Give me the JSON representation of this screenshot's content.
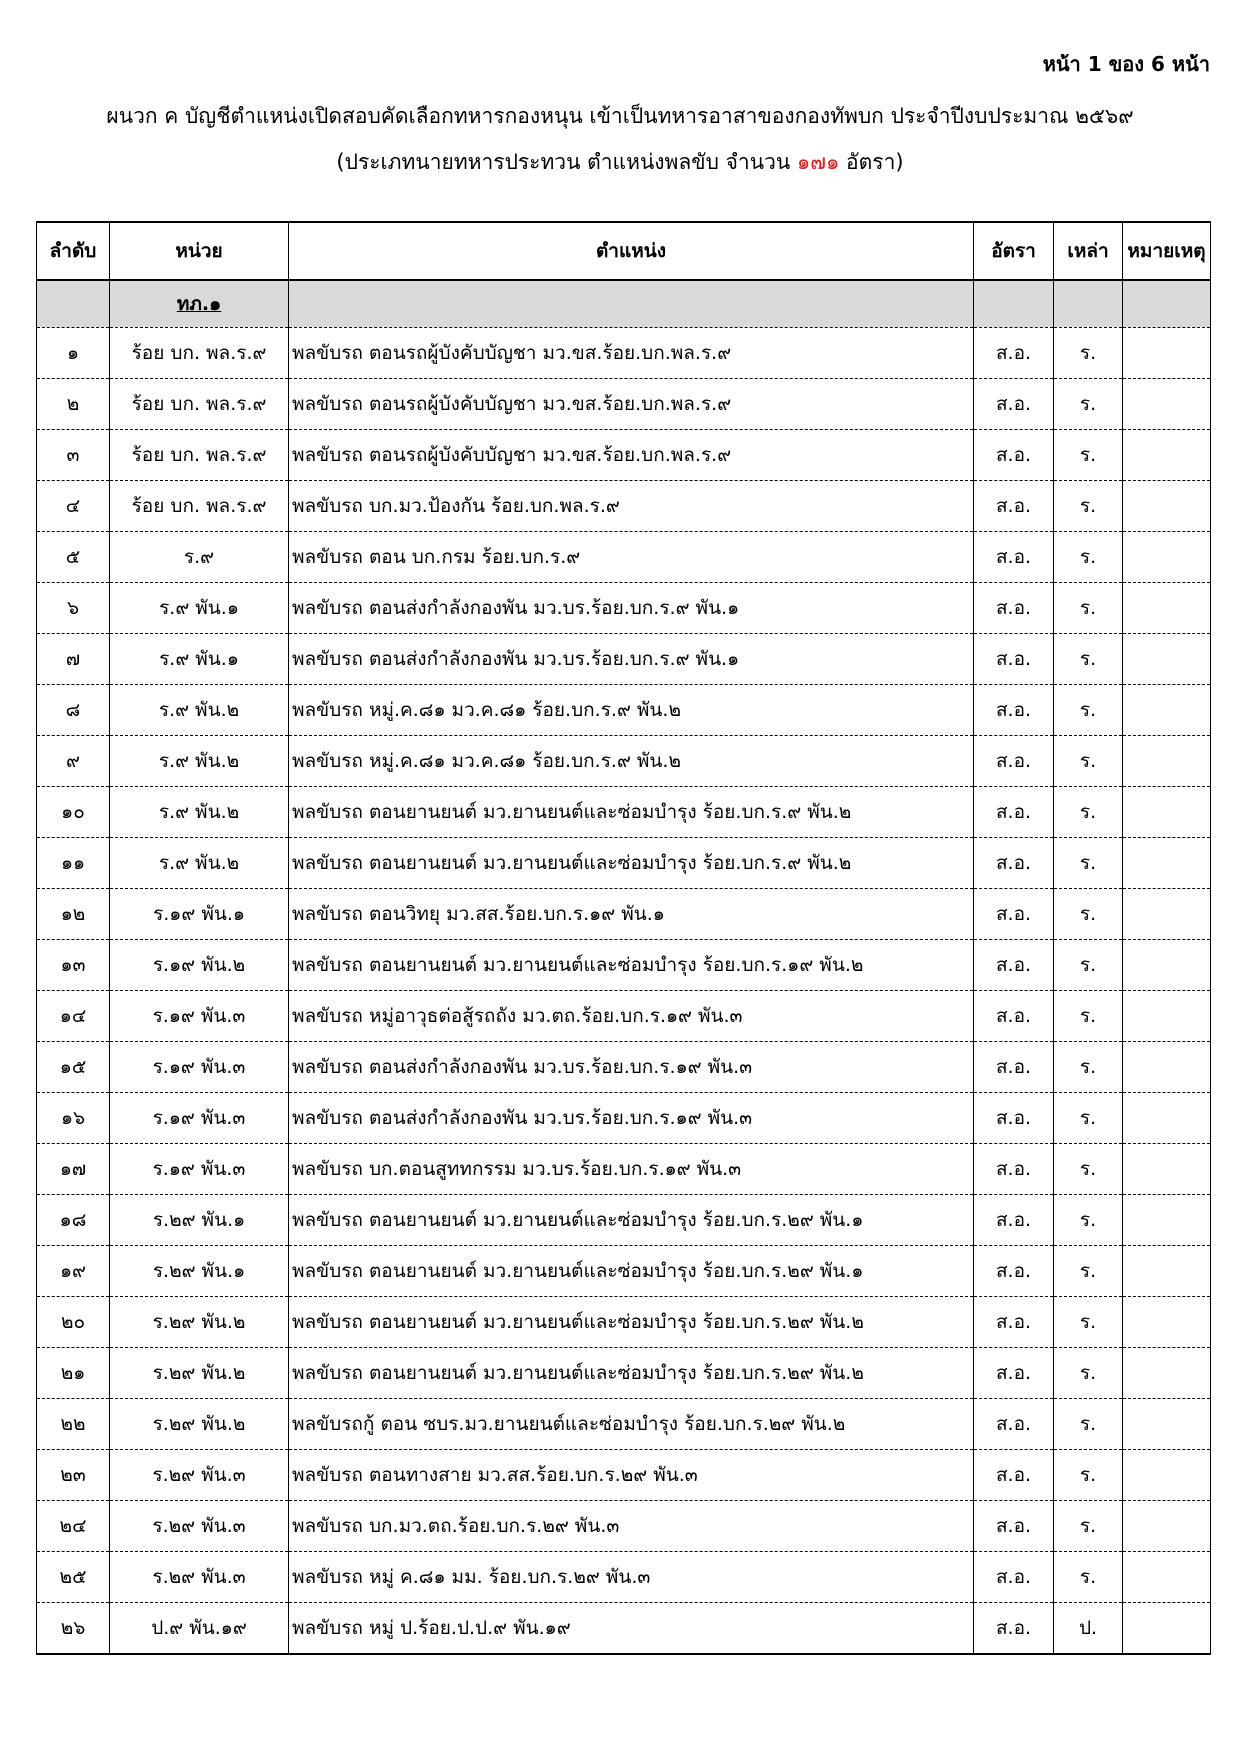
{
  "page_number": "หน้า 1 ของ 6 หน้า",
  "title": "ผนวก ค บัญชีตำแหน่งเปิดสอบคัดเลือกทหารกองหนุน เข้าเป็นทหารอาสาของกองทัพบก ประจำปีงบประมาณ ๒๕๖๙",
  "subtitle": {
    "before": "(ประเภทนายทหารประทวน ตำแหน่งพลขับ จำนวน ",
    "count": "๑๗๑",
    "after": " อัตรา)"
  },
  "table": {
    "headers": [
      "ลำดับ",
      "หน่วย",
      "ตำแหน่ง",
      "อัตรา",
      "เหล่า",
      "หมายเหตุ"
    ],
    "group": "ทภ.๑",
    "rows": [
      [
        "๑",
        "ร้อย บก. พล.ร.๙",
        "พลขับรถ ตอนรถผู้บังคับบัญชา มว.ขส.ร้อย.บก.พล.ร.๙",
        "ส.อ.",
        "ร."
      ],
      [
        "๒",
        "ร้อย บก. พล.ร.๙",
        "พลขับรถ ตอนรถผู้บังคับบัญชา มว.ขส.ร้อย.บก.พล.ร.๙",
        "ส.อ.",
        "ร."
      ],
      [
        "๓",
        "ร้อย บก. พล.ร.๙",
        "พลขับรถ ตอนรถผู้บังคับบัญชา มว.ขส.ร้อย.บก.พล.ร.๙",
        "ส.อ.",
        "ร."
      ],
      [
        "๔",
        "ร้อย บก. พล.ร.๙",
        "พลขับรถ บก.มว.ป้องกัน ร้อย.บก.พล.ร.๙",
        "ส.อ.",
        "ร."
      ],
      [
        "๕",
        "ร.๙",
        "พลขับรถ ตอน บก.กรม ร้อย.บก.ร.๙",
        "ส.อ.",
        "ร."
      ],
      [
        "๖",
        "ร.๙ พัน.๑",
        "พลขับรถ ตอนส่งกำลังกองพัน มว.บร.ร้อย.บก.ร.๙ พัน.๑",
        "ส.อ.",
        "ร."
      ],
      [
        "๗",
        "ร.๙ พัน.๑",
        "พลขับรถ ตอนส่งกำลังกองพัน มว.บร.ร้อย.บก.ร.๙ พัน.๑",
        "ส.อ.",
        "ร."
      ],
      [
        "๘",
        "ร.๙ พัน.๒",
        "พลขับรถ หมู่.ค.๘๑ มว.ค.๘๑ ร้อย.บก.ร.๙ พัน.๒",
        "ส.อ.",
        "ร."
      ],
      [
        "๙",
        "ร.๙ พัน.๒",
        "พลขับรถ หมู่.ค.๘๑ มว.ค.๘๑ ร้อย.บก.ร.๙ พัน.๒",
        "ส.อ.",
        "ร."
      ],
      [
        "๑๐",
        "ร.๙ พัน.๒",
        "พลขับรถ ตอนยานยนต์ มว.ยานยนต์และซ่อมบำรุง ร้อย.บก.ร.๙ พัน.๒",
        "ส.อ.",
        "ร."
      ],
      [
        "๑๑",
        "ร.๙ พัน.๒",
        "พลขับรถ ตอนยานยนต์ มว.ยานยนต์และซ่อมบำรุง ร้อย.บก.ร.๙ พัน.๒",
        "ส.อ.",
        "ร."
      ],
      [
        "๑๒",
        "ร.๑๙ พัน.๑",
        "พลขับรถ ตอนวิทยุ มว.สส.ร้อย.บก.ร.๑๙ พัน.๑",
        "ส.อ.",
        "ร."
      ],
      [
        "๑๓",
        "ร.๑๙ พัน.๒",
        "พลขับรถ ตอนยานยนต์ มว.ยานยนต์และซ่อมบำรุง ร้อย.บก.ร.๑๙ พัน.๒",
        "ส.อ.",
        "ร."
      ],
      [
        "๑๔",
        "ร.๑๙ พัน.๓",
        "พลขับรถ หมู่อาวุธต่อสู้รถถัง มว.ตถ.ร้อย.บก.ร.๑๙ พัน.๓",
        "ส.อ.",
        "ร."
      ],
      [
        "๑๕",
        "ร.๑๙ พัน.๓",
        "พลขับรถ ตอนส่งกำลังกองพัน มว.บร.ร้อย.บก.ร.๑๙ พัน.๓",
        "ส.อ.",
        "ร."
      ],
      [
        "๑๖",
        "ร.๑๙ พัน.๓",
        "พลขับรถ ตอนส่งกำลังกองพัน มว.บร.ร้อย.บก.ร.๑๙ พัน.๓",
        "ส.อ.",
        "ร."
      ],
      [
        "๑๗",
        "ร.๑๙ พัน.๓",
        "พลขับรถ บก.ตอนสูททกรรม มว.บร.ร้อย.บก.ร.๑๙ พัน.๓",
        "ส.อ.",
        "ร."
      ],
      [
        "๑๘",
        "ร.๒๙ พัน.๑",
        "พลขับรถ ตอนยานยนต์ มว.ยานยนต์และซ่อมบำรุง ร้อย.บก.ร.๒๙ พัน.๑",
        "ส.อ.",
        "ร."
      ],
      [
        "๑๙",
        "ร.๒๙ พัน.๑",
        "พลขับรถ ตอนยานยนต์ มว.ยานยนต์และซ่อมบำรุง ร้อย.บก.ร.๒๙ พัน.๑",
        "ส.อ.",
        "ร."
      ],
      [
        "๒๐",
        "ร.๒๙ พัน.๒",
        "พลขับรถ ตอนยานยนต์ มว.ยานยนต์และซ่อมบำรุง ร้อย.บก.ร.๒๙ พัน.๒",
        "ส.อ.",
        "ร."
      ],
      [
        "๒๑",
        "ร.๒๙ พัน.๒",
        "พลขับรถ ตอนยานยนต์ มว.ยานยนต์และซ่อมบำรุง ร้อย.บก.ร.๒๙ พัน.๒",
        "ส.อ.",
        "ร."
      ],
      [
        "๒๒",
        "ร.๒๙ พัน.๒",
        "พลขับรถกู้ ตอน ซบร.มว.ยานยนต์และซ่อมบำรุง ร้อย.บก.ร.๒๙ พัน.๒",
        "ส.อ.",
        "ร."
      ],
      [
        "๒๓",
        "ร.๒๙ พัน.๓",
        "พลขับรถ ตอนทางสาย มว.สส.ร้อย.บก.ร.๒๙ พัน.๓",
        "ส.อ.",
        "ร."
      ],
      [
        "๒๔",
        "ร.๒๙ พัน.๓",
        "พลขับรถ บก.มว.ตถ.ร้อย.บก.ร.๒๙ พัน.๓",
        "ส.อ.",
        "ร."
      ],
      [
        "๒๕",
        "ร.๒๙ พัน.๓",
        "พลขับรถ หมู่ ค.๘๑ มม. ร้อย.บก.ร.๒๙ พัน.๓",
        "ส.อ.",
        "ร."
      ],
      [
        "๒๖",
        "ป.๙ พัน.๑๙",
        "พลขับรถ หมู่ ป.ร้อย.ป.ป.๙ พัน.๑๙",
        "ส.อ.",
        "ป."
      ]
    ]
  }
}
